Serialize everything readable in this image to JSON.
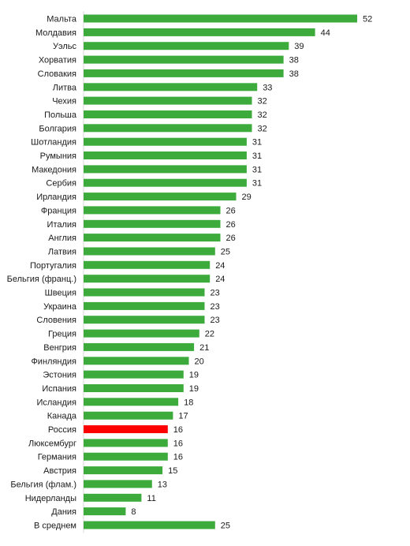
{
  "chart_data": {
    "type": "bar",
    "orientation": "horizontal",
    "categories": [
      "Мальта",
      "Молдавия",
      "Уэльс",
      "Хорватия",
      "Словакия",
      "Литва",
      "Чехия",
      "Польша",
      "Болгария",
      "Шотландия",
      "Румыния",
      "Македония",
      "Сербия",
      "Ирландия",
      "Франция",
      "Италия",
      "Англия",
      "Латвия",
      "Португалия",
      "Бельгия (франц.)",
      "Швеция",
      "Украина",
      "Словения",
      "Греция",
      "Венгрия",
      "Финляндия",
      "Эстония",
      "Испания",
      "Исландия",
      "Канада",
      "Россия",
      "Люксембург",
      "Германия",
      "Австрия",
      "Бельгия (флам.)",
      "Нидерланды",
      "Дания",
      "В среднем"
    ],
    "values": [
      52,
      44,
      39,
      38,
      38,
      33,
      32,
      32,
      32,
      31,
      31,
      31,
      31,
      29,
      26,
      26,
      26,
      25,
      24,
      24,
      23,
      23,
      23,
      22,
      21,
      20,
      19,
      19,
      18,
      17,
      16,
      16,
      16,
      15,
      13,
      11,
      8,
      25
    ],
    "highlight_category": "Россия",
    "xlim": [
      0,
      52
    ],
    "grid": false,
    "legend": "none",
    "data_labels": true,
    "colors": {
      "bar": "#3cab3c",
      "highlight": "#ff0000",
      "axis": "#d9d9d9"
    }
  }
}
